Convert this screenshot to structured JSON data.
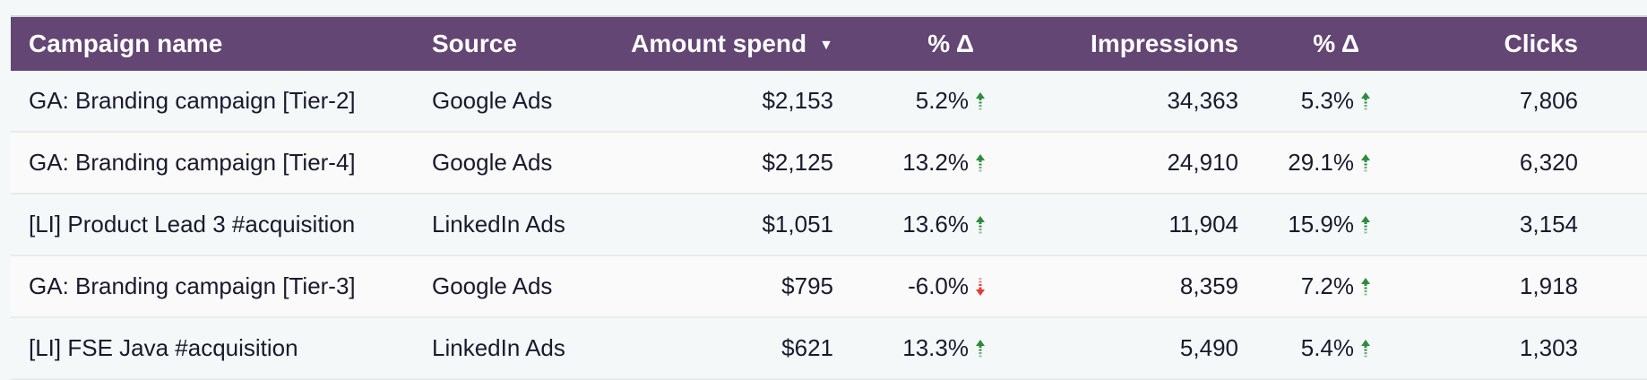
{
  "header": {
    "campaign": "Campaign name",
    "source": "Source",
    "amount": "Amount spend",
    "amount_sort": "descending",
    "delta1": "% Δ",
    "impressions": "Impressions",
    "delta2": "% Δ",
    "clicks": "Clicks"
  },
  "colors": {
    "header_bg": "#634674",
    "up": "#2e8b3e",
    "down": "#e53935"
  },
  "rows": [
    {
      "campaign": "GA: Branding campaign [Tier-2]",
      "source": "Google Ads",
      "amount": "$2,153",
      "delta1": "5.2%",
      "delta1_dir": "up",
      "impressions": "34,363",
      "delta2": "5.3%",
      "delta2_dir": "up",
      "clicks": "7,806"
    },
    {
      "campaign": "GA: Branding campaign [Tier-4]",
      "source": "Google Ads",
      "amount": "$2,125",
      "delta1": "13.2%",
      "delta1_dir": "up",
      "impressions": "24,910",
      "delta2": "29.1%",
      "delta2_dir": "up",
      "clicks": "6,320"
    },
    {
      "campaign": "[LI] Product Lead 3 #acquisition",
      "source": "LinkedIn Ads",
      "amount": "$1,051",
      "delta1": "13.6%",
      "delta1_dir": "up",
      "impressions": "11,904",
      "delta2": "15.9%",
      "delta2_dir": "up",
      "clicks": "3,154"
    },
    {
      "campaign": "GA: Branding campaign [Tier-3]",
      "source": "Google Ads",
      "amount": "$795",
      "delta1": "-6.0%",
      "delta1_dir": "down",
      "impressions": "8,359",
      "delta2": "7.2%",
      "delta2_dir": "up",
      "clicks": "1,918"
    },
    {
      "campaign": "[LI] FSE Java #acquisition",
      "source": "LinkedIn Ads",
      "amount": "$621",
      "delta1": "13.3%",
      "delta1_dir": "up",
      "impressions": "5,490",
      "delta2": "5.4%",
      "delta2_dir": "up",
      "clicks": "1,303"
    }
  ]
}
